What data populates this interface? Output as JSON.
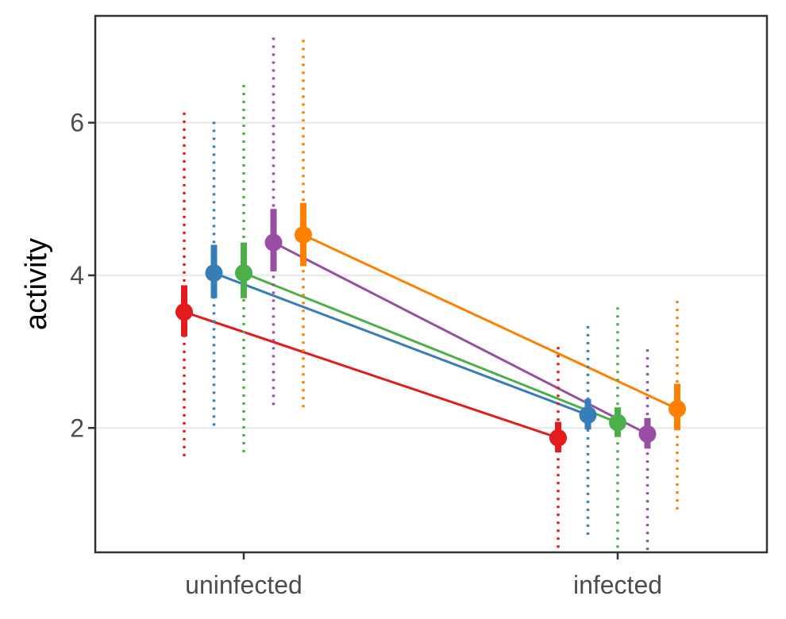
{
  "chart_data": {
    "type": "line",
    "title": "",
    "xlabel": "",
    "ylabel": "activity",
    "categories": [
      "uninfected",
      "infected"
    ],
    "y_ticks": [
      2,
      4,
      6
    ],
    "ylim": [
      0.37,
      7.4
    ],
    "grid": "horizontal major gridlines",
    "legend": "none",
    "series": [
      {
        "color": "#e41a1c",
        "mean": [
          3.52,
          1.87
        ],
        "ci_low": [
          3.2,
          1.68
        ],
        "ci_high": [
          3.87,
          2.08
        ],
        "range_low": [
          1.63,
          0.43
        ],
        "range_high": [
          6.17,
          3.1
        ]
      },
      {
        "color": "#377eb8",
        "mean": [
          4.03,
          2.17
        ],
        "ci_low": [
          3.7,
          1.98
        ],
        "ci_high": [
          4.4,
          2.38
        ],
        "range_low": [
          2.03,
          0.6
        ],
        "range_high": [
          6.07,
          3.4
        ]
      },
      {
        "color": "#4daf4a",
        "mean": [
          4.03,
          2.07
        ],
        "ci_low": [
          3.7,
          1.88
        ],
        "ci_high": [
          4.43,
          2.27
        ],
        "range_low": [
          1.68,
          0.43
        ],
        "range_high": [
          6.53,
          3.6
        ]
      },
      {
        "color": "#984ea3",
        "mean": [
          4.43,
          1.92
        ],
        "ci_low": [
          4.05,
          1.73
        ],
        "ci_high": [
          4.87,
          2.13
        ],
        "range_low": [
          2.3,
          0.4
        ],
        "range_high": [
          7.15,
          3.05
        ]
      },
      {
        "color": "#ff7f00",
        "mean": [
          4.53,
          2.25
        ],
        "ci_low": [
          4.12,
          1.97
        ],
        "ci_high": [
          4.95,
          2.58
        ],
        "range_low": [
          2.27,
          0.93
        ],
        "range_high": [
          7.1,
          3.7
        ]
      }
    ]
  }
}
